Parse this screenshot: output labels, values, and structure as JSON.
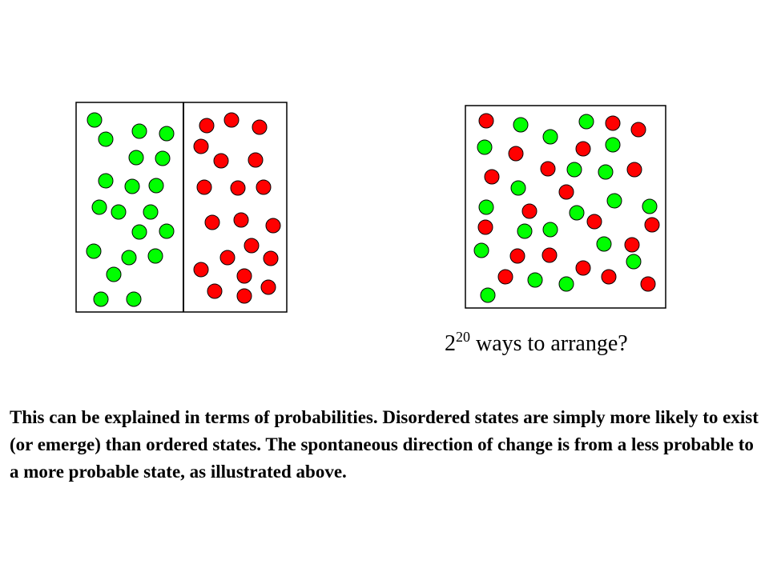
{
  "colors": {
    "green": "#00ff00",
    "red": "#ff0000",
    "outline": "#000000"
  },
  "ordered_box": {
    "green_count": 20,
    "red_count": 20
  },
  "mixed_box": {
    "green_count": 20,
    "red_count": 20
  },
  "caption": {
    "base": "2",
    "exponent": "20",
    "text": " ways to arrange?"
  },
  "explanation": "This can be explained in terms of probabilities. Disordered states are simply more likely to exist (or emerge) than ordered states. The spontaneous direction of change is from a less probable to a more probable state, as illustrated above."
}
